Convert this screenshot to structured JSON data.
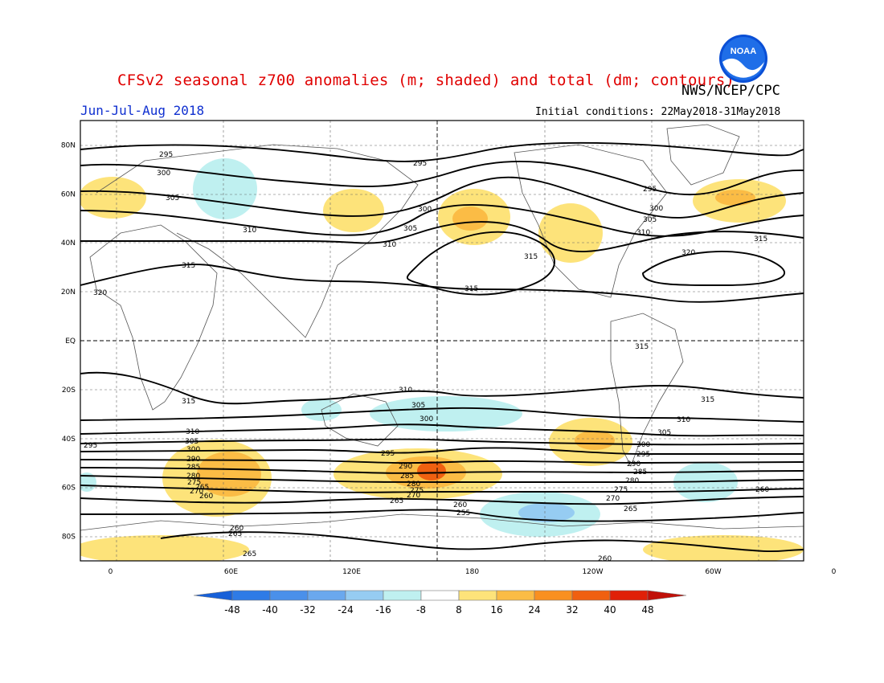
{
  "header": {
    "title": "CFSv2 seasonal z700 anomalies (m; shaded) and total (dm; contours)",
    "agency": "NWS/NCEP/CPC",
    "season": "Jun-Jul-Aug 2018",
    "initial_conditions": "Initial conditions: 22May2018-31May2018",
    "logo_text": "NOAA"
  },
  "map_data": {
    "type": "contour",
    "projection": "cylindrical-equidistant",
    "lat_range": [
      -90,
      90
    ],
    "lon_range": [
      -15,
      345
    ],
    "grid": true,
    "lat_ticks": [
      "80N",
      "60N",
      "40N",
      "20N",
      "EQ",
      "20S",
      "40S",
      "60S",
      "80S"
    ],
    "lat_tick_values": [
      80,
      60,
      40,
      20,
      0,
      -20,
      -40,
      -60,
      -80
    ],
    "lon_ticks": [
      "0",
      "60E",
      "120E",
      "180",
      "120W",
      "60W",
      "0"
    ],
    "lon_tick_values": [
      0,
      60,
      120,
      180,
      240,
      300,
      360
    ],
    "contour_values": [
      265,
      260,
      270,
      275,
      280,
      285,
      290,
      295,
      300,
      305,
      310,
      315,
      320
    ]
  },
  "colorbar": {
    "labels": [
      "-48",
      "-40",
      "-32",
      "-24",
      "-16",
      "-8",
      "8",
      "16",
      "24",
      "32",
      "40",
      "48"
    ],
    "colors": [
      "#1760d8",
      "#2e7be6",
      "#4a90ea",
      "#6aa8ee",
      "#96ccf2",
      "#bff0f0",
      "#ffffff",
      "#fde37a",
      "#fbbc45",
      "#f99020",
      "#f06010",
      "#e02008",
      "#c01008"
    ]
  }
}
